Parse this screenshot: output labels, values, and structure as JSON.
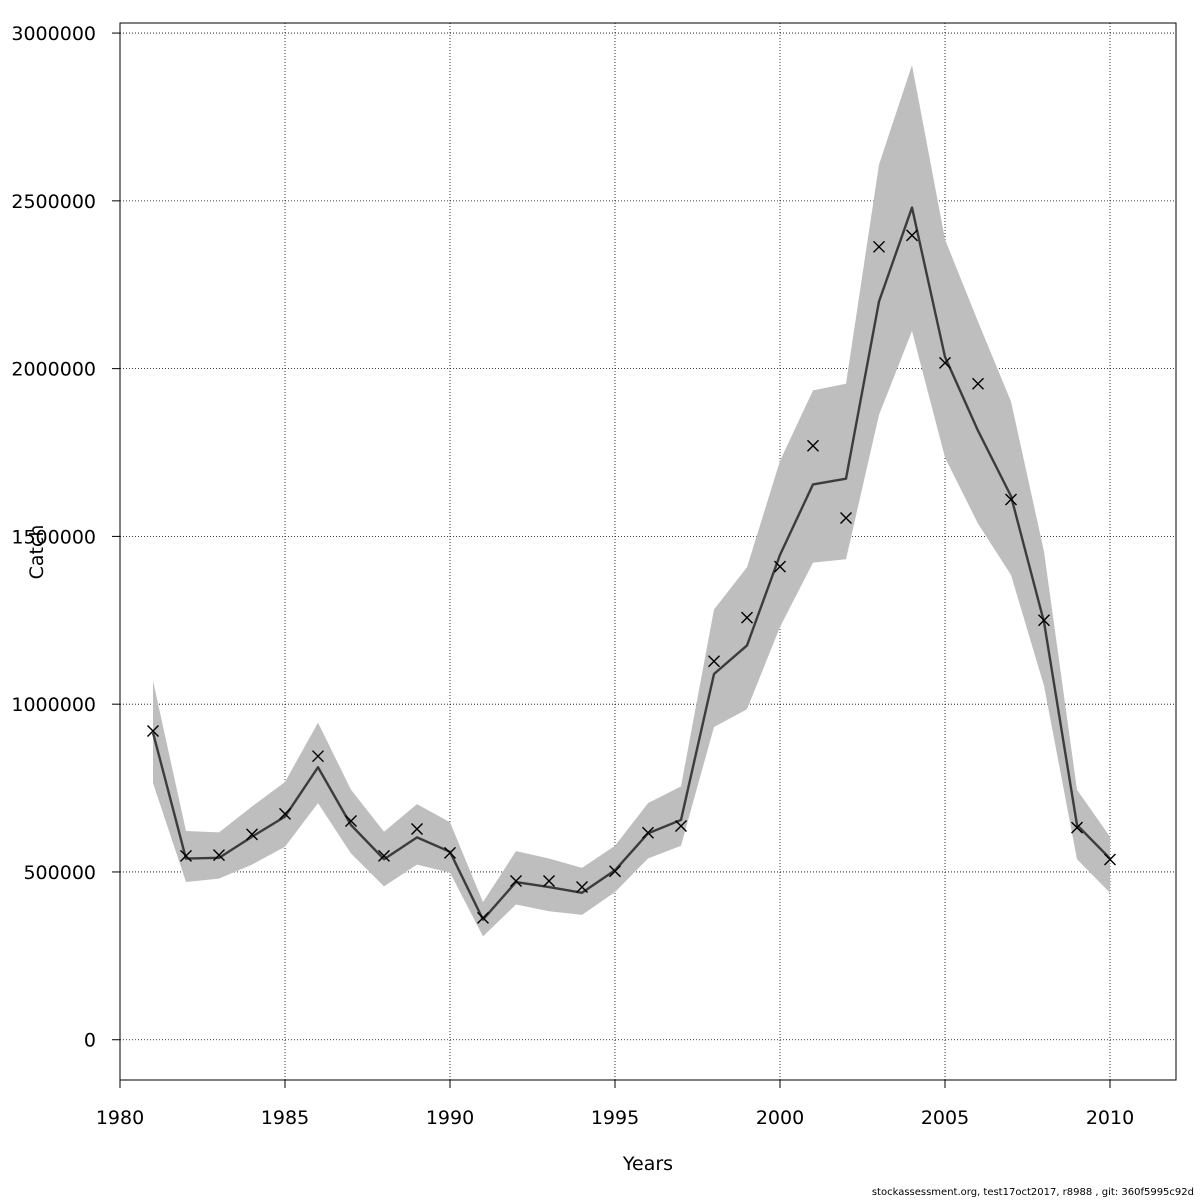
{
  "chart_data": {
    "type": "line",
    "title": "",
    "xlabel": "Years",
    "ylabel": "Catch",
    "xlim": [
      1980,
      2012
    ],
    "ylim": [
      -120000,
      3030000
    ],
    "x_ticks": [
      1980,
      1985,
      1990,
      1995,
      2000,
      2005,
      2010
    ],
    "y_ticks": [
      0,
      500000,
      1000000,
      1500000,
      2000000,
      2500000,
      3000000
    ],
    "x_tick_labels": [
      "1980",
      "1985",
      "1990",
      "1995",
      "2000",
      "2005",
      "2010"
    ],
    "y_tick_labels": [
      "0",
      "500000",
      "1000000",
      "1500000",
      "2000000",
      "2500000",
      "3000000"
    ],
    "grid": true,
    "x": [
      1981,
      1982,
      1983,
      1984,
      1985,
      1986,
      1987,
      1988,
      1989,
      1990,
      1991,
      1992,
      1993,
      1994,
      1995,
      1996,
      1997,
      1998,
      1999,
      2000,
      2001,
      2002,
      2003,
      2004,
      2005,
      2006,
      2007,
      2008,
      2009,
      2010
    ],
    "series": [
      {
        "role": "estimate",
        "values": [
          915000,
          540000,
          542000,
          605000,
          665000,
          812000,
          640000,
          538000,
          603000,
          560000,
          358000,
          470000,
          455000,
          438000,
          505000,
          615000,
          655000,
          1090000,
          1175000,
          1445000,
          1655000,
          1672000,
          2200000,
          2480000,
          2035000,
          1815000,
          1620000,
          1245000,
          640000,
          540000
        ]
      },
      {
        "role": "observed",
        "values": [
          920000,
          548000,
          550000,
          612000,
          673000,
          845000,
          652000,
          548000,
          628000,
          557000,
          363000,
          473000,
          473000,
          455000,
          502000,
          617000,
          637000,
          1128000,
          1258000,
          1410000,
          1770000,
          1555000,
          2363000,
          2397000,
          2017000,
          1955000,
          1610000,
          1250000,
          632000,
          537000
        ]
      }
    ],
    "band_lower": [
      765000,
      470000,
      480000,
      522000,
      575000,
      705000,
      555000,
      457000,
      522000,
      498000,
      308000,
      403000,
      383000,
      372000,
      440000,
      540000,
      578000,
      932000,
      985000,
      1230000,
      1422000,
      1432000,
      1862000,
      2112000,
      1735000,
      1538000,
      1385000,
      1055000,
      538000,
      438000
    ],
    "band_upper": [
      1070000,
      622000,
      618000,
      695000,
      768000,
      945000,
      745000,
      620000,
      702000,
      648000,
      410000,
      562000,
      540000,
      512000,
      578000,
      705000,
      755000,
      1282000,
      1408000,
      1725000,
      1935000,
      1955000,
      2608000,
      2905000,
      2385000,
      2140000,
      1902000,
      1455000,
      745000,
      605000
    ],
    "colors": {
      "band": "#bebebe",
      "line": "#3c3c3c",
      "marker": "#000000",
      "grid": "#000000"
    }
  },
  "footer": {
    "note": "stockassessment.org, test17oct2017, r8988 , git: 360f5995c92d"
  }
}
